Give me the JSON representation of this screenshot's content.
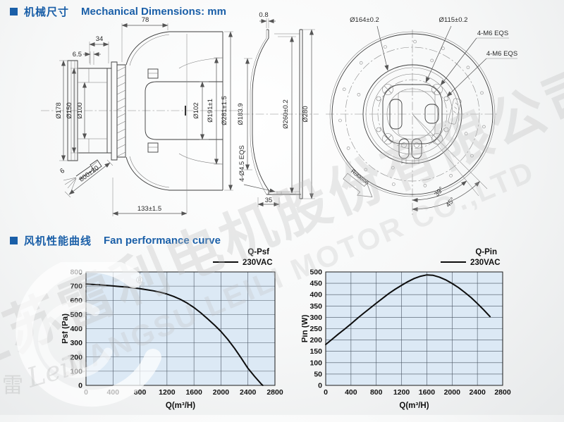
{
  "accent_color": "#1a5fa8",
  "sections": {
    "mech": {
      "zh": "机械尺寸",
      "en": "Mechanical Dimensions: mm"
    },
    "perf": {
      "zh": "风机性能曲线",
      "en": "Fan performance curve"
    }
  },
  "watermark": {
    "company_zh": "江苏雷利电机股份有限公司",
    "company_en": "JIANGSU LEILI MOTOR CO.,LTD",
    "logo_char": "雷",
    "logo_script": "Leili",
    "registered": "®"
  },
  "drawing": {
    "side": {
      "width_top": "78",
      "width_back": "34",
      "gap": "6.5",
      "flange_od": "Ø178",
      "bolt_circle": "Ø150",
      "pilot": "Ø100",
      "motor_od": "Ø102",
      "inlet_id": "Ø191±1",
      "impeller_od": "Ø281±1.5",
      "depth": "133±1.5",
      "cable_length": "800±20",
      "cable_dia": "6"
    },
    "inlet": {
      "lip": "0.8",
      "throat": "Ø183.9",
      "bolt_circle": "Ø260±0.2",
      "od": "Ø280",
      "holes": "4-Ø4.5 EQS",
      "flange_w": "35"
    },
    "front": {
      "ring": "Ø164±0.2",
      "bolt_circle": "Ø115±0.2",
      "screws_outer": "4-M6 EQS",
      "screws_inner": "4-M6 EQS",
      "angle_39": "39°",
      "angle_45": "45°",
      "rotation": "Rotation"
    }
  },
  "chart_data": [
    {
      "type": "line",
      "legend_title": "Q-Psf",
      "legend_label": "230VAC",
      "xlabel": "Q(m³/H)",
      "ylabel": "Psf (Pa)",
      "xlim": [
        0,
        2800
      ],
      "ylim": [
        0,
        800
      ],
      "xtick_step": 400,
      "ytick_step": 100,
      "grid": true,
      "legend_position": "top-right",
      "x": [
        0,
        100,
        200,
        300,
        400,
        500,
        600,
        700,
        800,
        900,
        1000,
        1100,
        1200,
        1300,
        1400,
        1500,
        1600,
        1700,
        1800,
        1900,
        2000,
        2100,
        2200,
        2300,
        2400,
        2500,
        2600,
        2620
      ],
      "y": [
        715,
        712,
        709,
        705,
        701,
        697,
        693,
        688,
        682,
        675,
        667,
        657,
        644,
        627,
        606,
        580,
        549,
        512,
        470,
        427,
        380,
        325,
        262,
        193,
        120,
        62,
        8,
        0
      ]
    },
    {
      "type": "line",
      "legend_title": "Q-Pin",
      "legend_label": "230VAC",
      "xlabel": "Q(m³/H)",
      "ylabel": "Pin (W)",
      "xlim": [
        0,
        2800
      ],
      "ylim": [
        0,
        500
      ],
      "xtick_step": 400,
      "ytick_step": 50,
      "grid": true,
      "legend_position": "top-right",
      "x": [
        0,
        100,
        200,
        300,
        400,
        500,
        600,
        700,
        800,
        900,
        1000,
        1100,
        1200,
        1300,
        1400,
        1500,
        1600,
        1700,
        1800,
        1900,
        2000,
        2100,
        2200,
        2300,
        2400,
        2500,
        2600
      ],
      "y": [
        180,
        203,
        226,
        248,
        271,
        295,
        318,
        340,
        362,
        384,
        405,
        424,
        441,
        457,
        471,
        481,
        487,
        485,
        477,
        465,
        449,
        431,
        410,
        387,
        361,
        333,
        303
      ]
    }
  ]
}
